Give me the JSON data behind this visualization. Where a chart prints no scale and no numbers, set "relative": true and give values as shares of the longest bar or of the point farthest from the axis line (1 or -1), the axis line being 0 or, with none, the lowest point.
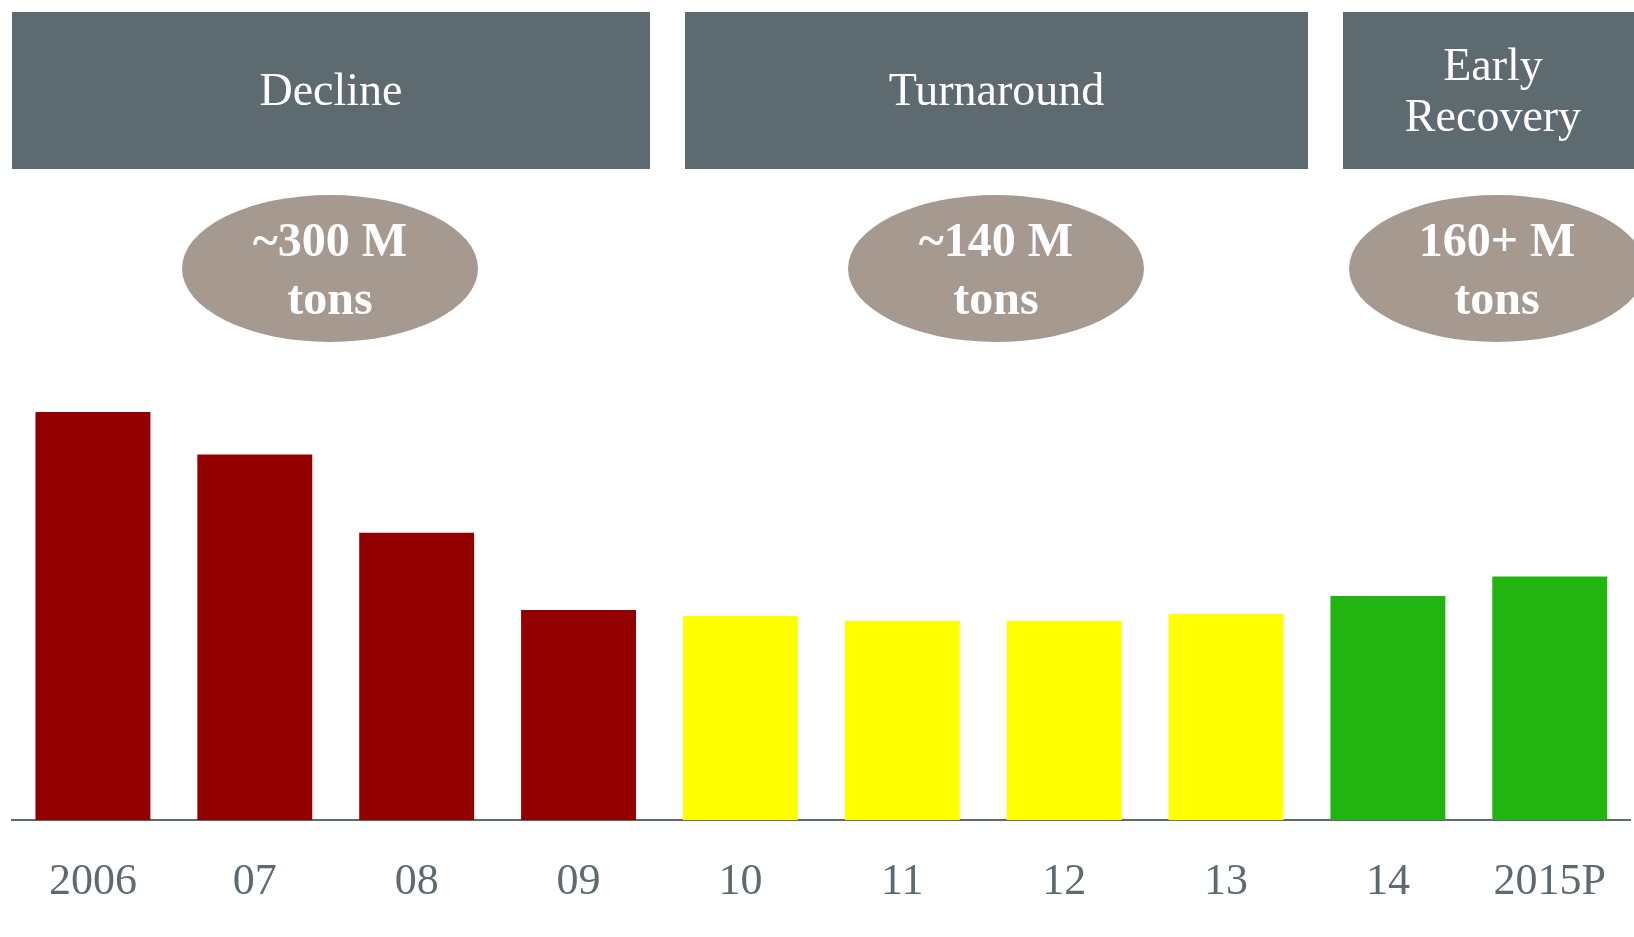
{
  "chart_data": {
    "type": "bar",
    "relative": true,
    "categories": [
      "2006",
      "07",
      "08",
      "09",
      "10",
      "11",
      "12",
      "13",
      "14",
      "2015P"
    ],
    "values": [
      1,
      0.896,
      0.704,
      0.515,
      0.5,
      0.488,
      0.488,
      0.505,
      0.549,
      0.597
    ],
    "colors": [
      "#920000",
      "#920000",
      "#920000",
      "#920000",
      "#ffff00",
      "#ffff00",
      "#ffff00",
      "#ffff00",
      "#22b411",
      "#22b411"
    ],
    "annotations": [
      "Decline",
      "Turnaround",
      "Early\nRecovery",
      "~300 M\ntons",
      "~140 M\ntons",
      "160+ M\ntons"
    ]
  }
}
